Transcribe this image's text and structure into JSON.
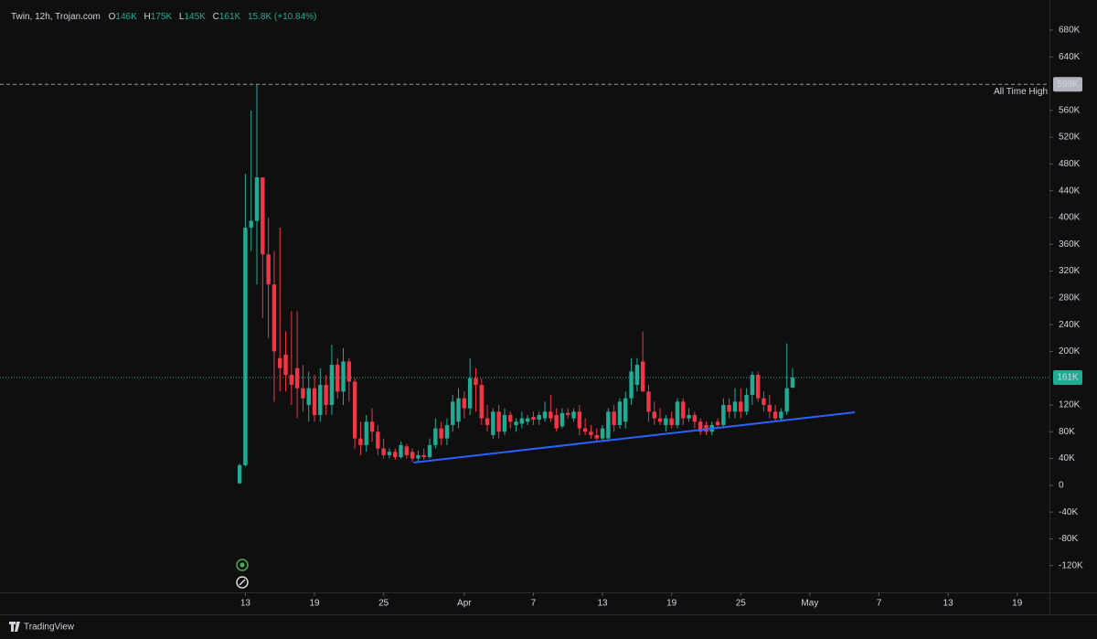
{
  "chart_data": {
    "type": "candlestick",
    "legend": {
      "name": "Twin, 12h, Trojan.com",
      "open_label": "O",
      "open": "146K",
      "high_label": "H",
      "high": "175K",
      "low_label": "L",
      "low": "145K",
      "close_label": "C",
      "close": "161K",
      "change": "15.8K (+10.84%)"
    },
    "up_color": "#22ab94",
    "down_color": "#f23645",
    "x": [
      12.5,
      13,
      13.5,
      14,
      14.5,
      15,
      15.5,
      16,
      16.5,
      17,
      17.5,
      18,
      18.5,
      19,
      19.5,
      20,
      20.5,
      21,
      21.5,
      22,
      22.5,
      23,
      23.5,
      24,
      24.5,
      25,
      25.5,
      26,
      26.5,
      27,
      27.5,
      28,
      28.5,
      29,
      29.5,
      30,
      30.5,
      31,
      31.5,
      32,
      32.5,
      33,
      33.5,
      34,
      34.5,
      35,
      35.5,
      36,
      36.5,
      37,
      37.5,
      38,
      38.5,
      39,
      39.5,
      40,
      40.5,
      41,
      41.5,
      42,
      42.5,
      43,
      43.5,
      44,
      44.5,
      45,
      45.5,
      46,
      46.5,
      47,
      47.5,
      48,
      48.5,
      49,
      49.5,
      50,
      50.5,
      51,
      51.5,
      52,
      52.5,
      53,
      53.5,
      54,
      54.5,
      55,
      55.5,
      56,
      56.5,
      57,
      57.5,
      58,
      58.5,
      59,
      59.5,
      60,
      60.5
    ],
    "open": [
      3000,
      30000,
      385000,
      395000,
      460000,
      345000,
      300000,
      190000,
      195000,
      165000,
      175000,
      145000,
      120000,
      145000,
      105000,
      150000,
      120000,
      180000,
      140000,
      185000,
      155000,
      70000,
      60000,
      95000,
      80000,
      55000,
      45000,
      50000,
      42000,
      58000,
      50000,
      40000,
      45000,
      42000,
      60000,
      85000,
      70000,
      90000,
      95000,
      130000,
      115000,
      160000,
      150000,
      100000,
      75000,
      110000,
      80000,
      105000,
      90000,
      92000,
      95000,
      102000,
      98000,
      100000,
      110000,
      105000,
      88000,
      108000,
      100000,
      110000,
      85000,
      80000,
      75000,
      70000,
      70000,
      110000,
      90000,
      95000,
      130000,
      150000,
      185000,
      140000,
      110000,
      100000,
      90000,
      100000,
      90000,
      125000,
      100000,
      105000,
      95000,
      90000,
      80000,
      95000,
      90000,
      120000,
      110000,
      125000,
      110000,
      135000,
      165000,
      130000,
      120000,
      110000,
      100000,
      110000,
      146000
    ],
    "high": [
      32000,
      465000,
      560000,
      599000,
      460000,
      400000,
      350000,
      385000,
      230000,
      260000,
      260000,
      180000,
      170000,
      165000,
      175000,
      165000,
      210000,
      190000,
      205000,
      190000,
      160000,
      95000,
      105000,
      115000,
      90000,
      70000,
      55000,
      55000,
      65000,
      62000,
      55000,
      52000,
      55000,
      70000,
      100000,
      95000,
      100000,
      135000,
      145000,
      140000,
      190000,
      175000,
      160000,
      120000,
      115000,
      120000,
      115000,
      110000,
      100000,
      110000,
      105000,
      110000,
      110000,
      125000,
      135000,
      115000,
      115000,
      115000,
      115000,
      120000,
      100000,
      90000,
      85000,
      90000,
      115000,
      120000,
      130000,
      140000,
      190000,
      190000,
      230000,
      150000,
      125000,
      115000,
      105000,
      110000,
      130000,
      130000,
      115000,
      110000,
      100000,
      95000,
      95000,
      100000,
      130000,
      130000,
      145000,
      145000,
      145000,
      170000,
      170000,
      140000,
      135000,
      120000,
      115000,
      212000,
      175000
    ],
    "low": [
      2000,
      28000,
      350000,
      300000,
      250000,
      220000,
      125000,
      140000,
      140000,
      120000,
      100000,
      110000,
      95000,
      95000,
      95000,
      105000,
      105000,
      130000,
      120000,
      125000,
      55000,
      45000,
      50000,
      65000,
      45000,
      40000,
      40000,
      38000,
      40000,
      40000,
      35000,
      35000,
      38000,
      40000,
      55000,
      60000,
      60000,
      80000,
      85000,
      100000,
      105000,
      110000,
      90000,
      80000,
      70000,
      70000,
      75000,
      85000,
      80000,
      85000,
      90000,
      90000,
      90000,
      95000,
      95000,
      80000,
      85000,
      100000,
      95000,
      75000,
      75000,
      70000,
      65000,
      65000,
      65000,
      80000,
      85000,
      85000,
      120000,
      140000,
      140000,
      95000,
      90000,
      90000,
      80000,
      85000,
      85000,
      90000,
      95000,
      85000,
      75000,
      75000,
      75000,
      85000,
      85000,
      100000,
      100000,
      100000,
      105000,
      120000,
      125000,
      110000,
      100000,
      95000,
      95000,
      105000,
      145000
    ],
    "close": [
      30000,
      385000,
      395000,
      460000,
      345000,
      300000,
      200000,
      175000,
      165000,
      150000,
      145000,
      130000,
      145000,
      105000,
      150000,
      120000,
      180000,
      140000,
      185000,
      155000,
      70000,
      60000,
      95000,
      80000,
      55000,
      45000,
      50000,
      42000,
      60000,
      45000,
      40000,
      45000,
      42000,
      60000,
      85000,
      70000,
      90000,
      125000,
      130000,
      115000,
      160000,
      150000,
      100000,
      90000,
      110000,
      80000,
      105000,
      95000,
      95000,
      100000,
      100000,
      98000,
      105000,
      110000,
      100000,
      85000,
      108000,
      105000,
      110000,
      85000,
      80000,
      75000,
      70000,
      85000,
      110000,
      90000,
      125000,
      130000,
      170000,
      180000,
      140000,
      110000,
      100000,
      95000,
      100000,
      90000,
      125000,
      100000,
      105000,
      95000,
      80000,
      80000,
      90000,
      90000,
      120000,
      110000,
      125000,
      110000,
      135000,
      165000,
      130000,
      120000,
      110000,
      100000,
      110000,
      145000,
      161000
    ],
    "xlim": [
      -8.3,
      82.8
    ],
    "xticks": [
      13,
      19,
      25,
      {
        "value": 32,
        "label": "Apr"
      },
      {
        "value": 38,
        "label": "7"
      },
      {
        "value": 44,
        "label": "13"
      },
      {
        "value": 50,
        "label": "19"
      },
      {
        "value": 56,
        "label": "25"
      },
      {
        "value": 62,
        "label": "May"
      },
      {
        "value": 68,
        "label": "7"
      },
      {
        "value": 74,
        "label": "13"
      },
      {
        "value": 80,
        "label": "19"
      }
    ],
    "ylim": [
      -160000,
      725000
    ],
    "yticks": [
      {
        "value": 680000,
        "label": "680K"
      },
      {
        "value": 640000,
        "label": "640K"
      },
      {
        "value": 560000,
        "label": "560K"
      },
      {
        "value": 520000,
        "label": "520K"
      },
      {
        "value": 480000,
        "label": "480K"
      },
      {
        "value": 440000,
        "label": "440K"
      },
      {
        "value": 400000,
        "label": "400K"
      },
      {
        "value": 360000,
        "label": "360K"
      },
      {
        "value": 320000,
        "label": "320K"
      },
      {
        "value": 280000,
        "label": "280K"
      },
      {
        "value": 240000,
        "label": "240K"
      },
      {
        "value": 200000,
        "label": "200K"
      },
      {
        "value": 120000,
        "label": "120K"
      },
      {
        "value": 80000,
        "label": "80K"
      },
      {
        "value": 40000,
        "label": "40K"
      },
      0,
      {
        "value": -40000,
        "label": "-40K"
      },
      {
        "value": -80000,
        "label": "-80K"
      },
      {
        "value": -120000,
        "label": "-120K"
      }
    ],
    "grid": false,
    "ath": {
      "value": 599000,
      "label": "599K",
      "text": "All Time High"
    },
    "last_price": {
      "value": 161000,
      "label": "161K"
    },
    "trendline": {
      "x": [
        27.6,
        65.9
      ],
      "values": [
        34000,
        109000
      ],
      "color": "#2962ff"
    }
  },
  "footer": {
    "brand": "TradingView"
  }
}
